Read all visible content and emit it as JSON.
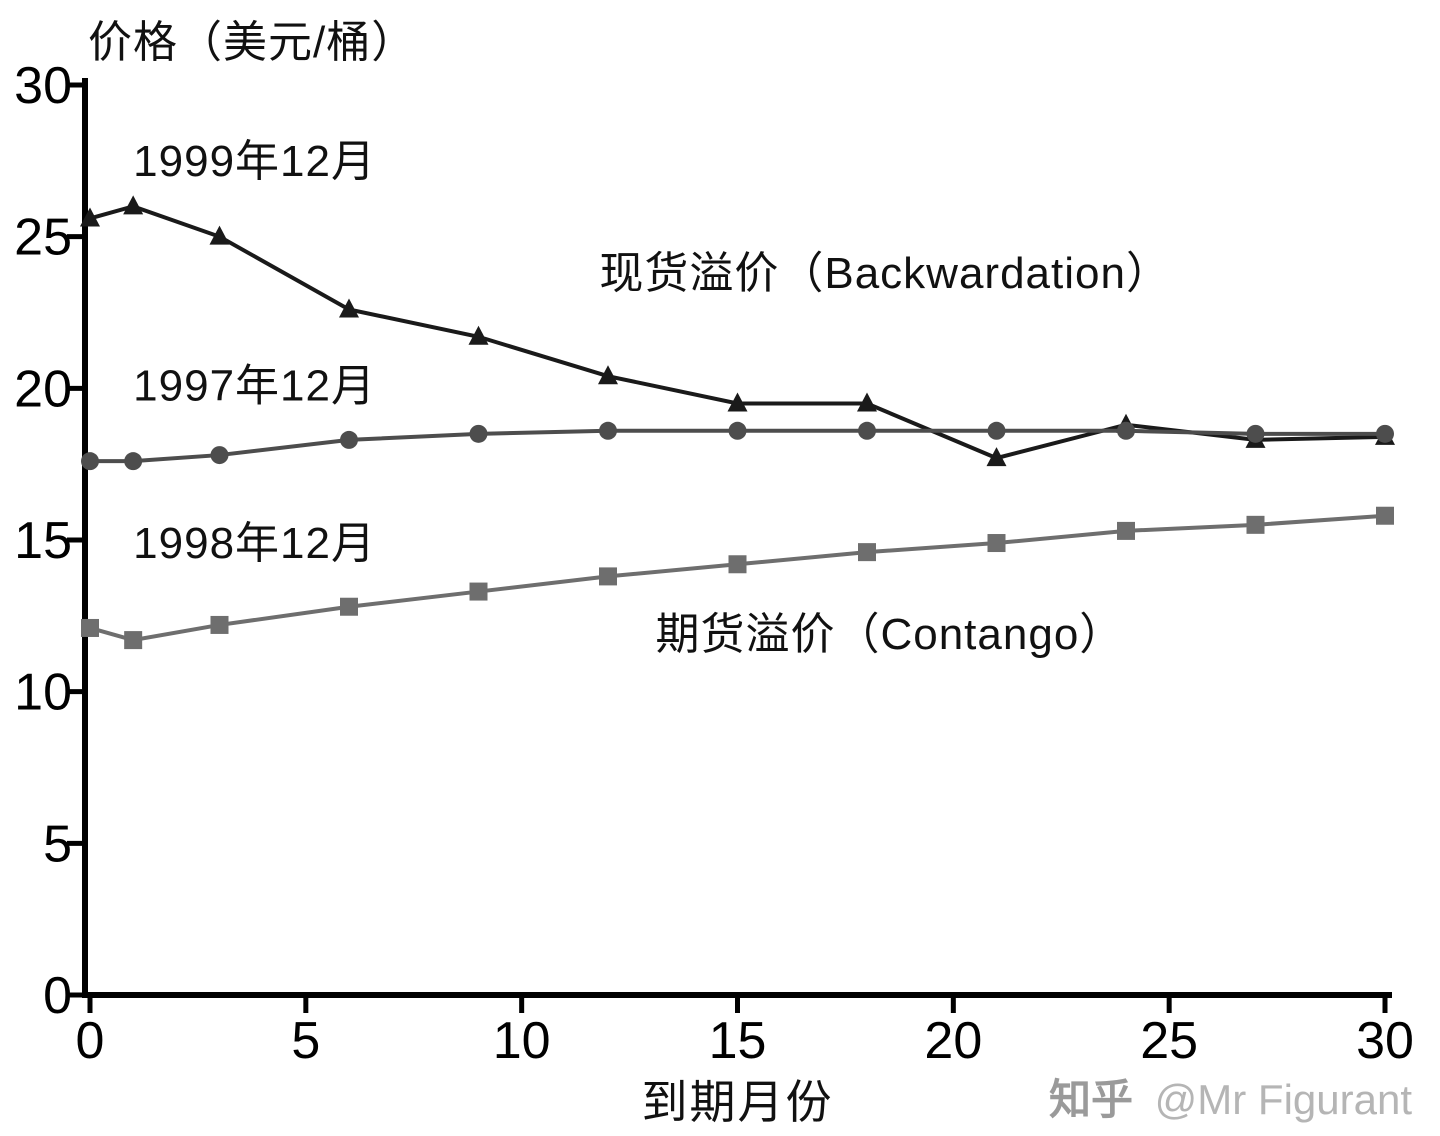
{
  "chart_data": {
    "type": "line",
    "title": "",
    "ylabel": "价格（美元/桶）",
    "xlabel": "到期月份",
    "xlim": [
      0,
      30
    ],
    "ylim": [
      0,
      30
    ],
    "xticks": [
      0,
      5,
      10,
      15,
      20,
      25,
      30
    ],
    "yticks": [
      0,
      5,
      10,
      15,
      20,
      25,
      30
    ],
    "grid": false,
    "legend_position": "none",
    "x": [
      0,
      1,
      3,
      6,
      9,
      12,
      15,
      18,
      21,
      24,
      27,
      30
    ],
    "series": [
      {
        "name": "1999年12月",
        "marker": "triangle",
        "color": "#1a1a1a",
        "values": [
          25.6,
          26.0,
          25.0,
          22.6,
          21.7,
          20.4,
          19.5,
          19.5,
          17.7,
          18.8,
          18.3,
          18.4
        ]
      },
      {
        "name": "1997年12月",
        "marker": "circle",
        "color": "#4d4d4d",
        "values": [
          17.6,
          17.6,
          17.8,
          18.3,
          18.5,
          18.6,
          18.6,
          18.6,
          18.6,
          18.6,
          18.5,
          18.5
        ]
      },
      {
        "name": "1998年12月",
        "marker": "square",
        "color": "#6e6e6e",
        "values": [
          12.1,
          11.7,
          12.2,
          12.8,
          13.3,
          13.8,
          14.2,
          14.6,
          14.9,
          15.3,
          15.5,
          15.8
        ]
      }
    ],
    "annotations": [
      {
        "text": "1999年12月",
        "x": 1.0,
        "y": 27.5,
        "anchor": "start"
      },
      {
        "text": "1997年12月",
        "x": 1.0,
        "y": 20.1,
        "anchor": "start"
      },
      {
        "text": "1998年12月",
        "x": 1.0,
        "y": 14.9,
        "anchor": "start"
      },
      {
        "text": "现货溢价（Backwardation）",
        "x": 11.8,
        "y": 23.8,
        "anchor": "start"
      },
      {
        "text": "期货溢价（Contango）",
        "x": 13.1,
        "y": 11.9,
        "anchor": "start"
      }
    ]
  },
  "watermark": {
    "brand": "知乎",
    "handle": "@Mr Figurant"
  }
}
